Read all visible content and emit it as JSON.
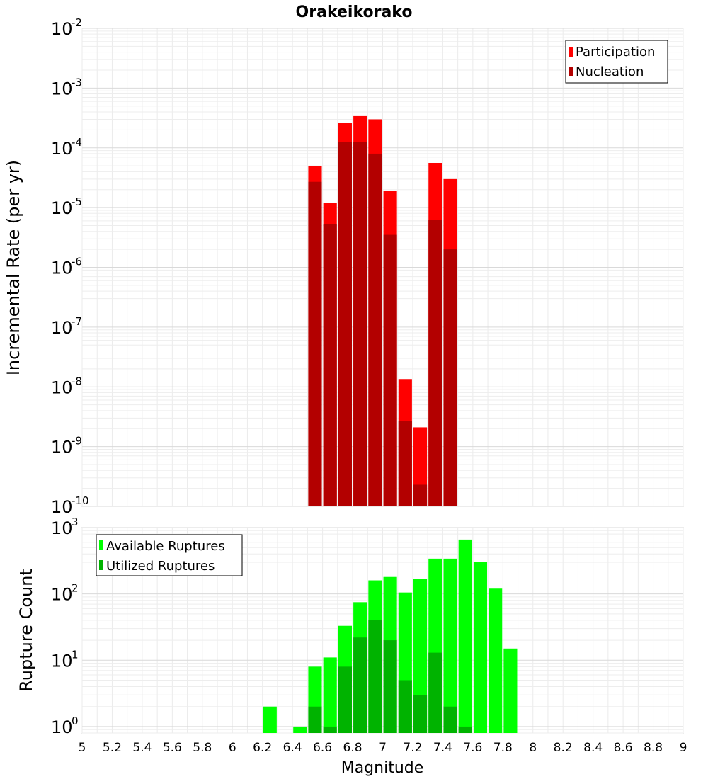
{
  "title": "Orakeikorako",
  "chart_data": [
    {
      "type": "bar",
      "ylabel": "Incremental Rate (per yr)",
      "yscale": "log",
      "ylim": [
        1e-10,
        0.01
      ],
      "yticks": [
        {
          "base": "10",
          "exp": "-10"
        },
        {
          "base": "10",
          "exp": "-9"
        },
        {
          "base": "10",
          "exp": "-8"
        },
        {
          "base": "10",
          "exp": "-7"
        },
        {
          "base": "10",
          "exp": "-6"
        },
        {
          "base": "10",
          "exp": "-5"
        },
        {
          "base": "10",
          "exp": "-4"
        },
        {
          "base": "10",
          "exp": "-3"
        },
        {
          "base": "10",
          "exp": "-2"
        }
      ],
      "xlim": [
        5,
        9
      ],
      "legend_position": "top-right",
      "series": [
        {
          "name": "Participation",
          "color": "#ff0000",
          "x": [
            6.55,
            6.65,
            6.75,
            6.85,
            6.95,
            7.05,
            7.15,
            7.25,
            7.35,
            7.45
          ],
          "values": [
            5e-05,
            1.2e-05,
            0.00026,
            0.00034,
            0.0003,
            1.9e-05,
            1.35e-08,
            2.1e-09,
            5.6e-05,
            3e-05
          ]
        },
        {
          "name": "Nucleation",
          "color": "#b30000",
          "x": [
            6.55,
            6.65,
            6.75,
            6.85,
            6.95,
            7.05,
            7.15,
            7.25,
            7.35,
            7.45
          ],
          "values": [
            2.7e-05,
            5.3e-06,
            0.000125,
            0.000125,
            8e-05,
            3.5e-06,
            2.7e-09,
            2.3e-10,
            6.2e-06,
            2e-06
          ]
        }
      ]
    },
    {
      "type": "bar",
      "ylabel": "Rupture Count",
      "xlabel": "Magnitude",
      "yscale": "log",
      "ylim": [
        0.8,
        1000
      ],
      "yticks": [
        {
          "base": "10",
          "exp": "0"
        },
        {
          "base": "10",
          "exp": "1"
        },
        {
          "base": "10",
          "exp": "2"
        },
        {
          "base": "10",
          "exp": "3"
        }
      ],
      "xlim": [
        5,
        9
      ],
      "xticks": [
        "5",
        "5.2",
        "5.4",
        "5.6",
        "5.8",
        "6",
        "6.2",
        "6.4",
        "6.6",
        "6.8",
        "7",
        "7.2",
        "7.4",
        "7.6",
        "7.8",
        "8",
        "8.2",
        "8.4",
        "8.6",
        "8.8",
        "9"
      ],
      "legend_position": "top-left",
      "series": [
        {
          "name": "Available Ruptures",
          "color": "#00ff00",
          "x": [
            6.25,
            6.45,
            6.55,
            6.65,
            6.75,
            6.85,
            6.95,
            7.05,
            7.15,
            7.25,
            7.35,
            7.45,
            7.55,
            7.65,
            7.75,
            7.85
          ],
          "values": [
            2,
            1,
            8,
            11,
            33,
            75,
            160,
            180,
            105,
            170,
            340,
            340,
            660,
            300,
            120,
            15
          ]
        },
        {
          "name": "Utilized Ruptures",
          "color": "#00b300",
          "x": [
            6.55,
            6.65,
            6.75,
            6.85,
            6.95,
            7.05,
            7.15,
            7.25,
            7.35,
            7.45,
            7.55
          ],
          "values": [
            2,
            1,
            8,
            22,
            40,
            20,
            5,
            3,
            13,
            2,
            1
          ]
        }
      ]
    }
  ]
}
